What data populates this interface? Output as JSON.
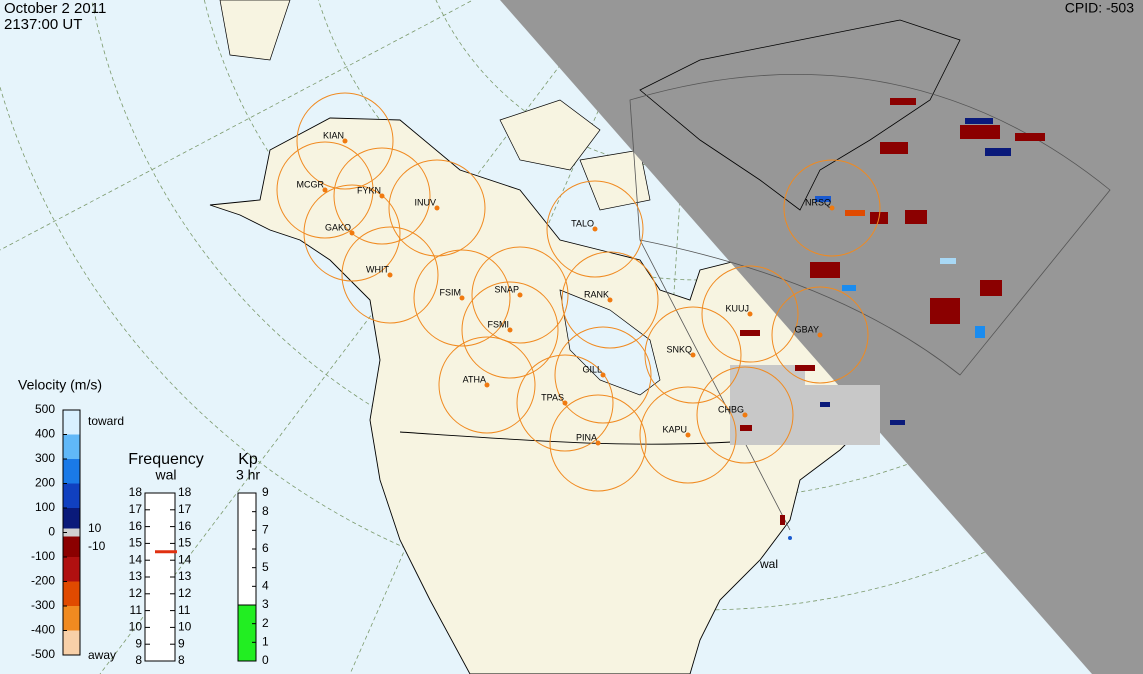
{
  "header": {
    "date": "October  2 2011",
    "time": "2137:00 UT",
    "cpid": "CPID:  -503"
  },
  "stations": [
    {
      "label": "KIAN"
    },
    {
      "label": "MCGR"
    },
    {
      "label": "FYKN"
    },
    {
      "label": "INUV"
    },
    {
      "label": "GAKO"
    },
    {
      "label": "WHIT"
    },
    {
      "label": "TALO"
    },
    {
      "label": "FSIM"
    },
    {
      "label": "SNAP"
    },
    {
      "label": "FSMI"
    },
    {
      "label": "RANK"
    },
    {
      "label": "KUUJ"
    },
    {
      "label": "NRSQ"
    },
    {
      "label": "GBAY"
    },
    {
      "label": "SNKQ"
    },
    {
      "label": "ATHA"
    },
    {
      "label": "GILL"
    },
    {
      "label": "TPAS"
    },
    {
      "label": "PINA"
    },
    {
      "label": "KAPU"
    },
    {
      "label": "CHBG"
    }
  ],
  "radar_label": "wal",
  "velocity_scale": {
    "title": "Velocity (m/s)",
    "ticks": [
      500,
      400,
      300,
      200,
      100,
      0,
      -100,
      -200,
      -300,
      -400,
      -500
    ],
    "toward": "toward",
    "away": "away",
    "marker_labels": [
      "10",
      "-10"
    ]
  },
  "frequency": {
    "title": "Frequency",
    "radar": "wal",
    "ticks": [
      8,
      9,
      10,
      11,
      12,
      13,
      14,
      15,
      16,
      17,
      18
    ],
    "value": 14.5
  },
  "kp": {
    "title": "Kp",
    "period": "3 hr",
    "ticks": [
      0,
      1,
      2,
      3,
      4,
      5,
      6,
      7,
      8,
      9
    ],
    "value": 3
  }
}
